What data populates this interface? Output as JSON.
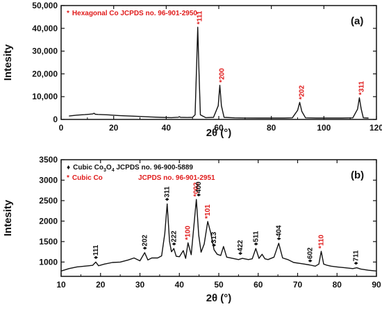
{
  "colors": {
    "cobalt": "#e01b1b",
    "oxide": "#111111",
    "trace": "#111111"
  },
  "chart_data": [
    {
      "type": "line",
      "panel_label": "(a)",
      "xlabel": "2θ (°)",
      "ylabel": "Intesity",
      "xlim": [
        0,
        120
      ],
      "ylim": [
        0,
        50000
      ],
      "xticks": [
        0,
        20,
        40,
        60,
        80,
        100,
        120
      ],
      "yticks": [
        0,
        10000,
        20000,
        30000,
        40000,
        50000
      ],
      "ytick_labels": [
        "0",
        "10,000",
        "20,000",
        "30,000",
        "40,000",
        "50,000"
      ],
      "grid": false,
      "legend_position": "top-left",
      "legend": [
        {
          "marker": "*",
          "text": "Hexagonal Co  JCPDS no.  96-901-2950",
          "color": "#e01b1b"
        }
      ],
      "series": [
        {
          "x": [
            3,
            6,
            9,
            12,
            12.5,
            13,
            14,
            18,
            22,
            26,
            30,
            34,
            38,
            42,
            44.5,
            45,
            45.5,
            48,
            50,
            51,
            51.6,
            52.0,
            52.4,
            53,
            55,
            58,
            59.8,
            60.4,
            61.0,
            62,
            66,
            70,
            75,
            80,
            85,
            88,
            90.0,
            90.8,
            91.6,
            93,
            97,
            102,
            107,
            111,
            112.8,
            113.5,
            114.2,
            115,
            117
          ],
          "y": [
            1500,
            1900,
            2100,
            2400,
            2700,
            2300,
            2200,
            2000,
            1700,
            1500,
            1300,
            1100,
            900,
            800,
            950,
            1200,
            900,
            850,
            900,
            2000,
            25000,
            40500,
            24000,
            2000,
            800,
            900,
            6000,
            15000,
            6000,
            900,
            700,
            650,
            600,
            600,
            600,
            700,
            4000,
            7500,
            3500,
            700,
            600,
            600,
            600,
            700,
            4500,
            9500,
            4500,
            700,
            600
          ]
        }
      ],
      "annotations": [
        {
          "marker": "*",
          "text": "111",
          "x": 52.0,
          "y": 40500,
          "color": "#e01b1b"
        },
        {
          "marker": "*",
          "text": "200",
          "x": 60.4,
          "y": 15000,
          "color": "#e01b1b"
        },
        {
          "marker": "*",
          "text": "202",
          "x": 90.8,
          "y": 7500,
          "color": "#e01b1b"
        },
        {
          "marker": "*",
          "text": "311",
          "x": 113.5,
          "y": 9500,
          "color": "#e01b1b"
        }
      ]
    },
    {
      "type": "line",
      "panel_label": "(b)",
      "xlabel": "2θ (°)",
      "ylabel": "Intesity",
      "xlim": [
        10,
        90
      ],
      "ylim": [
        650,
        3500
      ],
      "xticks": [
        10,
        20,
        30,
        40,
        50,
        60,
        70,
        80,
        90
      ],
      "yticks": [
        1000,
        1500,
        2000,
        2500,
        3000,
        3500
      ],
      "ytick_labels": [
        "1000",
        "1500",
        "2000",
        "2500",
        "3000",
        "3500"
      ],
      "grid": false,
      "legend_position": "top-left",
      "legend": [
        {
          "marker": "♦",
          "text_main": "Cubic Co",
          "text_sub_3": "3",
          "text_o": "O",
          "text_sub_4": "4",
          "text_tail": "   JCPDS no. 96-900-5889",
          "color": "#111111"
        },
        {
          "marker": "*",
          "text": "Cubic Co",
          "text_tail": "JCPDS no. 96-901-2951",
          "color": "#e01b1b"
        }
      ],
      "series": [
        {
          "x": [
            10,
            12,
            14,
            16,
            18,
            18.8,
            19.5,
            21,
            23,
            25,
            27,
            28.5,
            30,
            31.2,
            32,
            33,
            34.5,
            35.5,
            36.3,
            36.9,
            37.5,
            38.0,
            38.6,
            39.2,
            40,
            41,
            41.6,
            42.2,
            43,
            43.8,
            44.3,
            44.9,
            45.5,
            46.3,
            47.2,
            48.0,
            48.8,
            49.6,
            50.5,
            51.2,
            52,
            53.5,
            55,
            56,
            57.5,
            58.5,
            59.4,
            60.2,
            61.0,
            61.7,
            62.5,
            64.0,
            65.2,
            66.2,
            67.5,
            69,
            71,
            73,
            74.5,
            75.4,
            76.0,
            76.6,
            77.5,
            78.5,
            80,
            82,
            84,
            85,
            86,
            88,
            90
          ],
          "y": [
            780,
            840,
            880,
            900,
            920,
            1000,
            910,
            950,
            990,
            1000,
            1050,
            1100,
            1030,
            1230,
            1050,
            1100,
            1100,
            1150,
            1700,
            2420,
            1500,
            1250,
            1330,
            1140,
            1130,
            1280,
            1090,
            1470,
            1180,
            2000,
            2530,
            1660,
            1240,
            1440,
            1990,
            1700,
            1300,
            1190,
            1160,
            1380,
            1120,
            1090,
            1060,
            1090,
            1060,
            1080,
            1330,
            1090,
            1190,
            1080,
            1060,
            1120,
            1460,
            1100,
            1060,
            990,
            960,
            930,
            900,
            950,
            1260,
            950,
            920,
            900,
            880,
            860,
            840,
            860,
            830,
            800,
            780
          ]
        }
      ],
      "annotations": [
        {
          "marker": "♦",
          "text": "111",
          "x": 18.8,
          "y": 1000,
          "color": "#111111"
        },
        {
          "marker": "♦",
          "text": "202",
          "x": 31.2,
          "y": 1230,
          "color": "#111111"
        },
        {
          "marker": "♦",
          "text": "311",
          "x": 36.9,
          "y": 2420,
          "color": "#111111"
        },
        {
          "marker": "♦",
          "text": "222",
          "x": 38.6,
          "y": 1330,
          "color": "#111111"
        },
        {
          "marker": "*",
          "text": "100",
          "x": 42.2,
          "y": 1470,
          "color": "#e01b1b"
        },
        {
          "marker": "*",
          "text": "002",
          "x": 44.3,
          "y": 2530,
          "color": "#e01b1b"
        },
        {
          "marker": "♦",
          "text": "400",
          "x": 44.9,
          "y": 2530,
          "color": "#111111"
        },
        {
          "marker": "*",
          "text": "101",
          "x": 47.2,
          "y": 1990,
          "color": "#e01b1b"
        },
        {
          "marker": "♦",
          "text": "313",
          "x": 48.8,
          "y": 1300,
          "color": "#111111"
        },
        {
          "marker": "♦",
          "text": "422",
          "x": 55.5,
          "y": 1100,
          "color": "#111111"
        },
        {
          "marker": "♦",
          "text": "511",
          "x": 59.4,
          "y": 1330,
          "color": "#111111"
        },
        {
          "marker": "♦",
          "text": "404",
          "x": 65.2,
          "y": 1460,
          "color": "#111111"
        },
        {
          "marker": "♦",
          "text": "602",
          "x": 73.2,
          "y": 920,
          "color": "#111111"
        },
        {
          "marker": "*",
          "text": "110",
          "x": 76.0,
          "y": 1260,
          "color": "#e01b1b"
        },
        {
          "marker": "♦",
          "text": "711",
          "x": 84.8,
          "y": 860,
          "color": "#111111"
        }
      ]
    }
  ]
}
